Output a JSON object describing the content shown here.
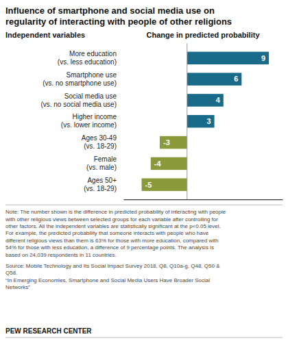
{
  "chart_data": {
    "type": "bar",
    "orientation": "horizontal",
    "title": "Influence of smartphone and social media use on\nregularity of interacting with people of other religions",
    "ylabel": "Independent variables",
    "xlabel": "Change in predicted probability",
    "categories": [
      "More education\n(vs. less education)",
      "Smartphone use\n(vs. no smartphone use)",
      "Social media use\n(vs. no social media use)",
      "Higher income\n(vs. lower income)",
      "Ages 30-49\n(vs. 18-29)",
      "Female\n(vs. male)",
      "Ages 50+\n(vs. 18-29)"
    ],
    "values": [
      9,
      6,
      4,
      3,
      -3,
      -4,
      -5
    ],
    "colors": [
      "#1a6b8a",
      "#1a6b8a",
      "#1a6b8a",
      "#1a6b8a",
      "#8a9a3a",
      "#8a9a3a",
      "#8a9a3a"
    ],
    "xlim": [
      -7.0,
      10.5
    ],
    "xticks": [],
    "tick_labels": "y",
    "data_labels": true,
    "grid": false,
    "annotations": [
      "Note: The number shown is the difference in predicted probability of interacting with people\nwith other religious views between selected groups for each variable after controlling for\nother factors. All the independent variables are statistically significant at the p<0.05 level.\nFor example, the predicted probability that someone interacts with people who have\ndifferent religious views than them is 63% for those with more education, compared with\n54% for those with less education, a difference of 9 percentage points. The analysis is\nbased on 24,039 respondents in 11 countries.",
      "Source: Mobile Technology and Its Social Impact Survey 2018, Q8, Q10a-g, Q48, Q50 &\nQ58.\n“In Emerging Economies, Smartphone and Social Media Users Have Broader Social\nNetworks”",
      "PEW RESEARCH CENTER"
    ]
  }
}
